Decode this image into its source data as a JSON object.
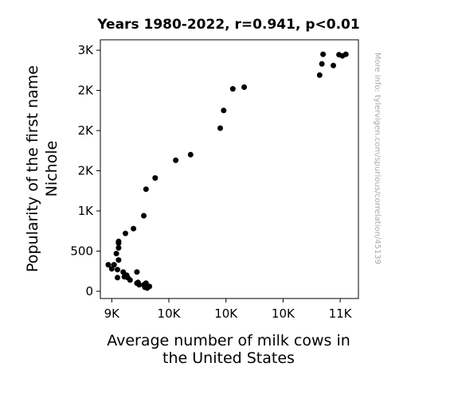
{
  "chart_data": {
    "type": "scatter",
    "title": "Years 1980-2022, r=0.941, p<0.01",
    "xlabel": [
      "Average number of milk cows in",
      "the United States"
    ],
    "ylabel": [
      "Popularity of the first name",
      "Nichole"
    ],
    "watermark": "More info: tylervigen.com/spurious/correlation/45139",
    "xlim": [
      8900,
      11160
    ],
    "ylim": [
      -90,
      3130
    ],
    "x_ticks": [
      {
        "value": 9000,
        "label": "9K"
      },
      {
        "value": 9500,
        "label": "10K"
      },
      {
        "value": 10000,
        "label": "10K"
      },
      {
        "value": 10500,
        "label": "10K"
      },
      {
        "value": 11000,
        "label": "11K"
      }
    ],
    "y_ticks": [
      {
        "value": 0,
        "label": "0"
      },
      {
        "value": 500,
        "label": "500"
      },
      {
        "value": 1000,
        "label": "1K"
      },
      {
        "value": 1500,
        "label": "2K"
      },
      {
        "value": 2000,
        "label": "2K"
      },
      {
        "value": 2500,
        "label": "2K"
      },
      {
        "value": 3000,
        "label": "3K"
      }
    ],
    "marker_color": "#000000",
    "points": [
      [
        11050,
        2950
      ],
      [
        10990,
        2945
      ],
      [
        11020,
        2930
      ],
      [
        10850,
        2950
      ],
      [
        10840,
        2830
      ],
      [
        10940,
        2810
      ],
      [
        10820,
        2690
      ],
      [
        10160,
        2540
      ],
      [
        10060,
        2520
      ],
      [
        9980,
        2250
      ],
      [
        9950,
        2030
      ],
      [
        9690,
        1700
      ],
      [
        9560,
        1630
      ],
      [
        9380,
        1410
      ],
      [
        9300,
        1270
      ],
      [
        9280,
        940
      ],
      [
        9190,
        780
      ],
      [
        9120,
        720
      ],
      [
        9060,
        540
      ],
      [
        9060,
        620
      ],
      [
        9060,
        600
      ],
      [
        9040,
        470
      ],
      [
        9060,
        390
      ],
      [
        9020,
        330
      ],
      [
        8970,
        330
      ],
      [
        9000,
        280
      ],
      [
        9050,
        270
      ],
      [
        9100,
        240
      ],
      [
        9130,
        200
      ],
      [
        9110,
        180
      ],
      [
        9140,
        170
      ],
      [
        9050,
        170
      ],
      [
        9160,
        140
      ],
      [
        9220,
        240
      ],
      [
        9230,
        110
      ],
      [
        9220,
        100
      ],
      [
        9240,
        80
      ],
      [
        9290,
        60
      ],
      [
        9300,
        100
      ],
      [
        9330,
        60
      ],
      [
        9290,
        50
      ],
      [
        9310,
        40
      ],
      [
        9280,
        80
      ]
    ]
  }
}
